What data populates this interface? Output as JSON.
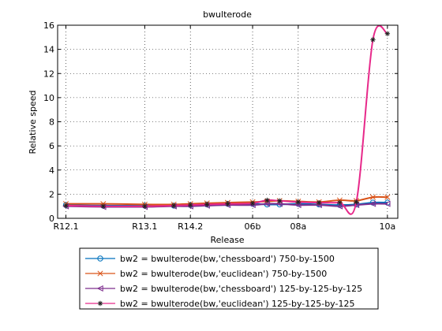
{
  "chart_data": {
    "type": "line",
    "title": "bwulterode",
    "xlabel": "Release",
    "ylabel": "Relative speed",
    "ylim": [
      0,
      16
    ],
    "grid": true,
    "legend_position": "bottom",
    "xtick_labels": [
      "R12.1",
      "R13.1",
      "R14.2",
      "06b",
      "08a",
      "10a"
    ],
    "ytick_labels": [
      "0",
      "2",
      "4",
      "6",
      "8",
      "10",
      "12",
      "14",
      "16"
    ],
    "x_positions": [
      0,
      1.8,
      3.8,
      5.2,
      6.0,
      6.8,
      7.8,
      9.0,
      9.7,
      10.3,
      11.2,
      12.2,
      13.2,
      14.0,
      14.8,
      15.5
    ],
    "series": [
      {
        "name": "bw2 = bwulterode(bw,'chessboard')  750-by-1500",
        "color": "#0072bd",
        "marker": "circle",
        "values": [
          1.1,
          1.05,
          1.05,
          1.05,
          1.1,
          1.15,
          1.2,
          1.2,
          1.15,
          1.15,
          1.2,
          1.15,
          1.1,
          1.15,
          1.3,
          1.3
        ]
      },
      {
        "name": "bw2 = bwulterode(bw,'euclidean')  750-by-1500",
        "color": "#d95319",
        "marker": "x",
        "values": [
          1.2,
          1.2,
          1.15,
          1.15,
          1.2,
          1.25,
          1.3,
          1.35,
          1.4,
          1.45,
          1.4,
          1.35,
          1.5,
          1.45,
          1.75,
          1.75
        ]
      },
      {
        "name": "bw2 = bwulterode(bw,'chessboard')  125-by-125-by-125",
        "color": "#7e2f8e",
        "marker": "triangle-left",
        "values": [
          1.0,
          0.95,
          0.95,
          1.0,
          1.0,
          1.05,
          1.1,
          1.1,
          1.2,
          1.2,
          1.1,
          1.1,
          1.0,
          1.1,
          1.2,
          1.2
        ]
      },
      {
        "name": "bw2 = bwulterode(bw,'euclidean')  125-by-125-by-125",
        "color": "#e7298a",
        "marker": "star",
        "values": [
          1.05,
          1.0,
          1.0,
          1.05,
          1.1,
          1.15,
          1.2,
          1.25,
          1.5,
          1.45,
          1.35,
          1.3,
          1.3,
          1.35,
          14.8,
          15.3
        ]
      }
    ],
    "xtick_positions": [
      0,
      3.8,
      6.0,
      9.0,
      11.2,
      15.5
    ]
  }
}
